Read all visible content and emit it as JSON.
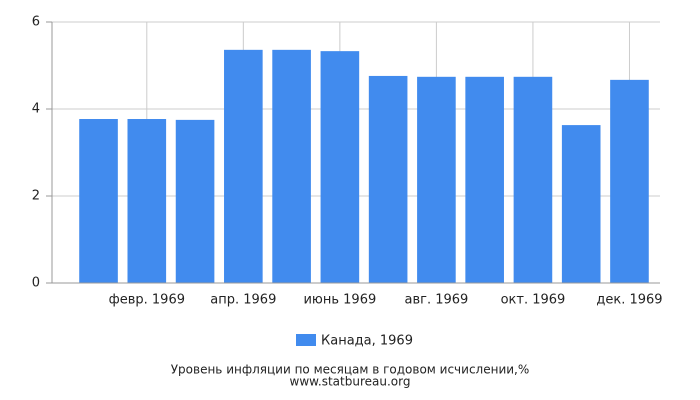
{
  "chart_data": {
    "type": "bar",
    "title": "Уровень инфляции по месяцам в годовом исчислении,%",
    "source": "www.statbureau.org",
    "categories": [
      null,
      "февр. 1969",
      null,
      "апр. 1969",
      null,
      "июнь 1969",
      null,
      "авг. 1969",
      null,
      "окт. 1969",
      null,
      "дек. 1969"
    ],
    "series": [
      {
        "name": "Канада, 1969",
        "color": "#418bee",
        "values": [
          3.77,
          3.77,
          3.75,
          5.36,
          5.36,
          5.33,
          4.76,
          4.74,
          4.74,
          4.74,
          3.63,
          4.67
        ]
      }
    ],
    "ylim": [
      0,
      6
    ],
    "yticks": [
      0,
      2,
      4,
      6
    ],
    "grid": true
  }
}
